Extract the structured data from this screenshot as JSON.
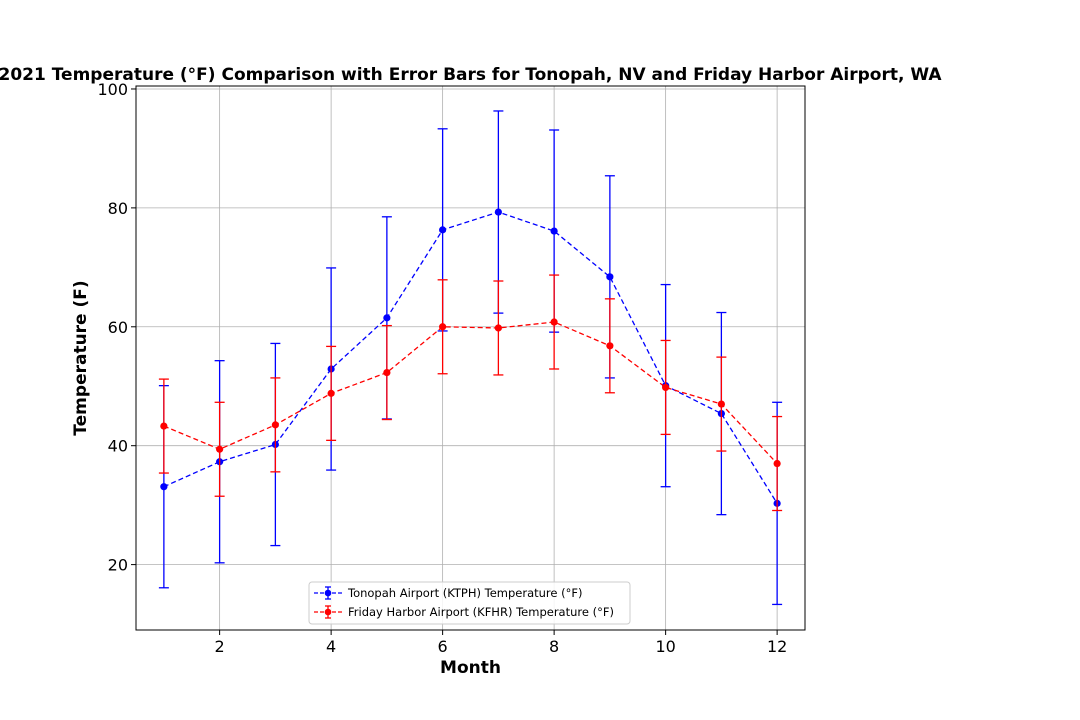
{
  "chart_data": {
    "type": "line",
    "title": "2021 Temperature (°F) Comparison with Error Bars for Tonopah, NV and Friday Harbor Airport, WA",
    "xlabel": "Month",
    "ylabel": "Temperature (F)",
    "xlim": [
      0.5,
      12.5
    ],
    "ylim": [
      9,
      100.5
    ],
    "x_ticks": [
      2,
      4,
      6,
      8,
      10,
      12
    ],
    "y_ticks": [
      20,
      40,
      60,
      80,
      100
    ],
    "grid": true,
    "legend_position": "bottom-center",
    "x": [
      1,
      2,
      3,
      4,
      5,
      6,
      7,
      8,
      9,
      10,
      11,
      12
    ],
    "series": [
      {
        "name": "Tonopah Airport (KTPH) Temperature (°F)",
        "color": "#0000ff",
        "line_style": "dashed",
        "marker": "circle",
        "values": [
          33.1,
          37.3,
          40.2,
          52.9,
          61.5,
          76.3,
          79.3,
          76.1,
          68.4,
          50.1,
          45.4,
          30.3
        ],
        "errors": [
          17.0,
          17.0,
          17.0,
          17.0,
          17.0,
          17.0,
          17.0,
          17.0,
          17.0,
          17.0,
          17.0,
          17.0
        ]
      },
      {
        "name": "Friday Harbor Airport (KFHR) Temperature (°F)",
        "color": "#ff0000",
        "line_style": "dashed",
        "marker": "circle",
        "values": [
          43.3,
          39.4,
          43.5,
          48.8,
          52.3,
          60.0,
          59.8,
          60.8,
          56.8,
          49.8,
          47.0,
          37.0
        ],
        "errors": [
          7.9,
          7.9,
          7.9,
          7.9,
          7.9,
          7.9,
          7.9,
          7.9,
          7.9,
          7.9,
          7.9,
          7.9
        ]
      }
    ]
  }
}
